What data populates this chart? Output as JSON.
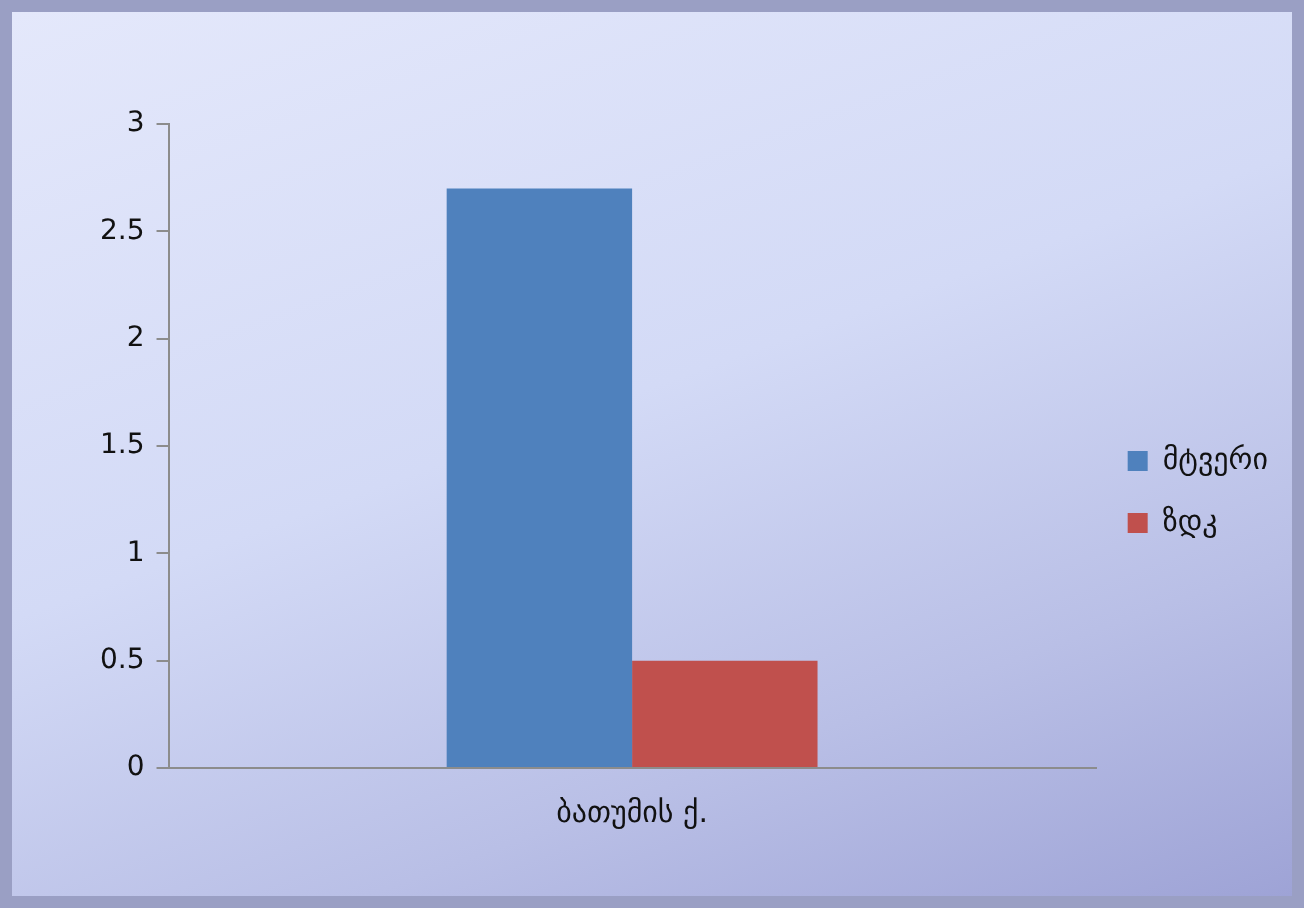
{
  "chart_data": {
    "type": "bar",
    "categories": [
      "ბათუმის ქ."
    ],
    "series": [
      {
        "name": "მტვერი",
        "color": "#4f81bd",
        "values": [
          2.7
        ]
      },
      {
        "name": "ზდკ",
        "color": "#c0504d",
        "values": [
          0.5
        ]
      }
    ],
    "ylim": [
      0,
      3
    ],
    "yticks": [
      0,
      0.5,
      1,
      1.5,
      2,
      2.5,
      3
    ],
    "grid": false,
    "legend": "right"
  }
}
